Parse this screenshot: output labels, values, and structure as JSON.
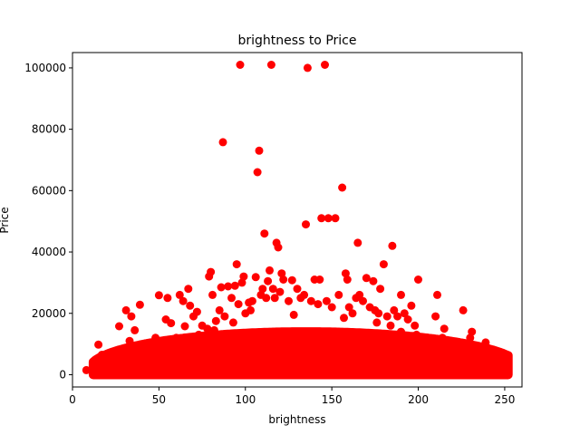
{
  "chart_data": {
    "type": "scatter",
    "title": "brightness to Price",
    "xlabel": "brightness",
    "ylabel": "Price",
    "xlim": [
      0,
      260
    ],
    "ylim": [
      -4000,
      105000
    ],
    "xticks": [
      0,
      50,
      100,
      150,
      200,
      250
    ],
    "yticks": [
      0,
      20000,
      40000,
      60000,
      80000,
      100000
    ],
    "grid": false,
    "legend": "none",
    "marker_color": "#ff0000",
    "series": [
      {
        "points": [
          [
            8,
            1500
          ],
          [
            15,
            9800
          ],
          [
            16,
            500
          ],
          [
            17,
            6500
          ],
          [
            18,
            3000
          ],
          [
            20,
            1000
          ],
          [
            22,
            4500
          ],
          [
            25,
            2000
          ],
          [
            27,
            15800
          ],
          [
            28,
            7800
          ],
          [
            30,
            2500
          ],
          [
            31,
            21000
          ],
          [
            33,
            11000
          ],
          [
            34,
            19000
          ],
          [
            35,
            5000
          ],
          [
            36,
            14500
          ],
          [
            38,
            3500
          ],
          [
            39,
            22800
          ],
          [
            40,
            8000
          ],
          [
            42,
            6000
          ],
          [
            45,
            3000
          ],
          [
            48,
            12000
          ],
          [
            50,
            25900
          ],
          [
            52,
            11000
          ],
          [
            54,
            18000
          ],
          [
            55,
            25000
          ],
          [
            57,
            16800
          ],
          [
            58,
            10000
          ],
          [
            60,
            12000
          ],
          [
            62,
            26000
          ],
          [
            64,
            24000
          ],
          [
            65,
            15800
          ],
          [
            67,
            28000
          ],
          [
            68,
            22500
          ],
          [
            70,
            19000
          ],
          [
            72,
            20500
          ],
          [
            75,
            16000
          ],
          [
            78,
            15000
          ],
          [
            79,
            32000
          ],
          [
            80,
            33500
          ],
          [
            81,
            26000
          ],
          [
            83,
            17500
          ],
          [
            85,
            21000
          ],
          [
            86,
            28500
          ],
          [
            87,
            75800
          ],
          [
            88,
            19000
          ],
          [
            90,
            28800
          ],
          [
            92,
            25000
          ],
          [
            94,
            29000
          ],
          [
            95,
            36000
          ],
          [
            96,
            23000
          ],
          [
            97,
            101000
          ],
          [
            98,
            30000
          ],
          [
            99,
            32000
          ],
          [
            100,
            20000
          ],
          [
            102,
            23500
          ],
          [
            104,
            24000
          ],
          [
            106,
            31800
          ],
          [
            107,
            66000
          ],
          [
            108,
            73000
          ],
          [
            109,
            26000
          ],
          [
            110,
            28000
          ],
          [
            111,
            46000
          ],
          [
            112,
            25000
          ],
          [
            113,
            30500
          ],
          [
            114,
            34000
          ],
          [
            115,
            101000
          ],
          [
            116,
            28000
          ],
          [
            117,
            25000
          ],
          [
            118,
            43000
          ],
          [
            119,
            41500
          ],
          [
            120,
            27000
          ],
          [
            121,
            33000
          ],
          [
            122,
            31000
          ],
          [
            125,
            24000
          ],
          [
            127,
            30800
          ],
          [
            130,
            28000
          ],
          [
            132,
            25000
          ],
          [
            134,
            26000
          ],
          [
            135,
            49000
          ],
          [
            136,
            100000
          ],
          [
            138,
            24000
          ],
          [
            140,
            31000
          ],
          [
            142,
            23000
          ],
          [
            143,
            31000
          ],
          [
            144,
            51000
          ],
          [
            146,
            101000
          ],
          [
            147,
            24000
          ],
          [
            148,
            51000
          ],
          [
            150,
            22000
          ],
          [
            152,
            51000
          ],
          [
            154,
            26000
          ],
          [
            156,
            61000
          ],
          [
            158,
            33000
          ],
          [
            159,
            31000
          ],
          [
            160,
            22000
          ],
          [
            162,
            20000
          ],
          [
            164,
            25000
          ],
          [
            165,
            43000
          ],
          [
            166,
            26000
          ],
          [
            168,
            24000
          ],
          [
            170,
            31500
          ],
          [
            172,
            22000
          ],
          [
            174,
            30500
          ],
          [
            175,
            21000
          ],
          [
            177,
            20000
          ],
          [
            178,
            28000
          ],
          [
            180,
            36000
          ],
          [
            182,
            19000
          ],
          [
            184,
            16000
          ],
          [
            185,
            42000
          ],
          [
            186,
            21000
          ],
          [
            188,
            19000
          ],
          [
            190,
            26000
          ],
          [
            192,
            20000
          ],
          [
            194,
            18000
          ],
          [
            196,
            22500
          ],
          [
            198,
            16000
          ],
          [
            200,
            31000
          ],
          [
            202,
            12000
          ],
          [
            205,
            10000
          ],
          [
            208,
            8000
          ],
          [
            210,
            19000
          ],
          [
            211,
            26000
          ],
          [
            214,
            12000
          ],
          [
            216,
            8000
          ],
          [
            218,
            6000
          ],
          [
            220,
            5000
          ],
          [
            222,
            7000
          ],
          [
            224,
            4000
          ],
          [
            226,
            21000
          ],
          [
            228,
            9000
          ],
          [
            230,
            12000
          ],
          [
            231,
            14000
          ],
          [
            232,
            6000
          ],
          [
            234,
            3000
          ],
          [
            236,
            2500
          ],
          [
            238,
            7000
          ],
          [
            239,
            10500
          ],
          [
            241,
            3500
          ],
          [
            243,
            2000
          ],
          [
            245,
            3500
          ],
          [
            247,
            1500
          ],
          [
            249,
            500
          ],
          [
            190,
            14000
          ],
          [
            176,
            17000
          ],
          [
            157,
            18500
          ],
          [
            128,
            19500
          ],
          [
            103,
            21000
          ],
          [
            93,
            17000
          ],
          [
            82,
            14500
          ],
          [
            73,
            13000
          ],
          [
            63,
            11500
          ],
          [
            53,
            9500
          ],
          [
            44,
            8500
          ],
          [
            199,
            13000
          ],
          [
            212,
            10500
          ],
          [
            223,
            6500
          ],
          [
            235,
            4500
          ],
          [
            215,
            15000
          ]
        ]
      }
    ]
  }
}
